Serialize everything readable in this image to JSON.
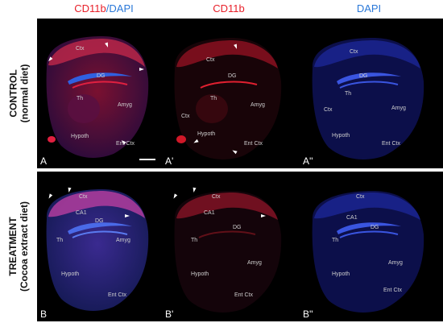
{
  "columns": {
    "c1_red": "CD11b",
    "c1_sep": "/",
    "c1_blue": "DAPI",
    "c2": "CD11b",
    "c3": "DAPI"
  },
  "rows": {
    "control_line1": "CONTROL",
    "control_line2": "(normal diet)",
    "treatment_line1": "TREATMENT",
    "treatment_line2": "(Cocoa extract diet)"
  },
  "panels": {
    "A": "A",
    "A1": "A'",
    "A2": "A''",
    "B": "B",
    "B1": "B'",
    "B2": "B''"
  },
  "regions": {
    "ctx": "Ctx",
    "dg": "DG",
    "th": "Th",
    "amyg": "Amyg",
    "hypoth": "Hypoth",
    "ent": "Ent Ctx",
    "ca1": "CA1"
  },
  "colors": {
    "cd11b": "#e8202a",
    "dapi": "#2a78d8"
  }
}
